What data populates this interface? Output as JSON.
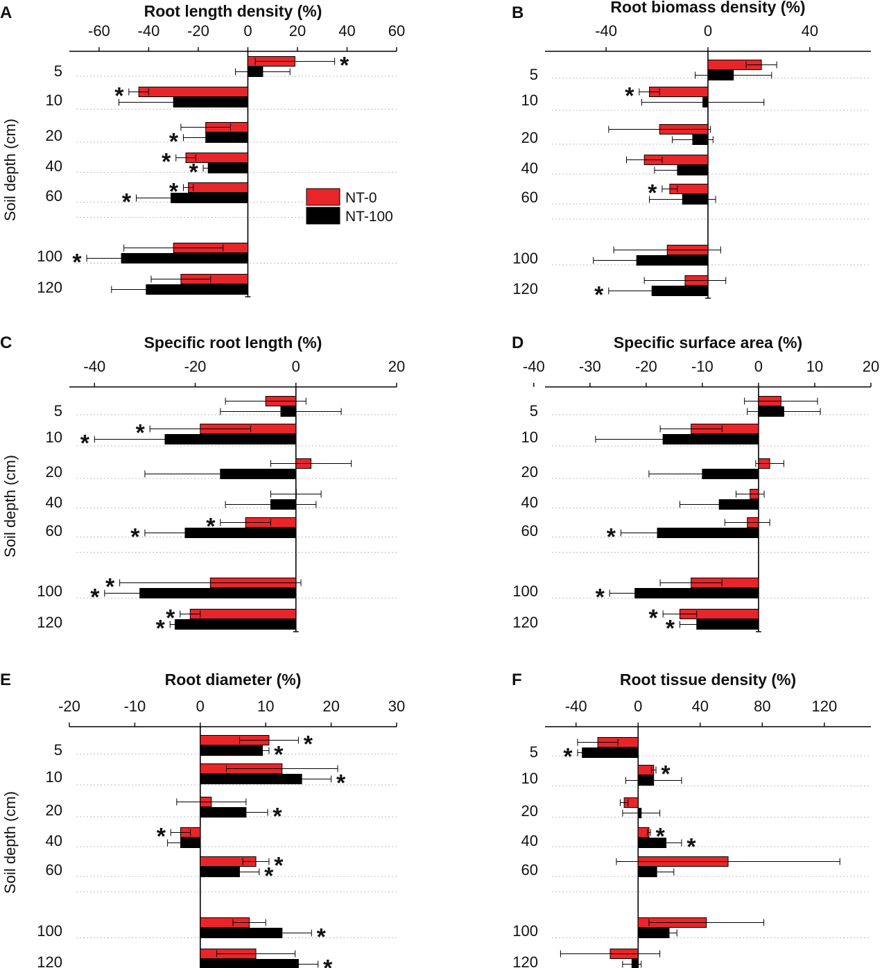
{
  "legend": {
    "items": [
      {
        "label": "NT-0",
        "color": "#e8262a"
      },
      {
        "label": "NT-100",
        "color": "#000000"
      }
    ]
  },
  "colors": {
    "nt0": "#e8262a",
    "nt100": "#000000",
    "axis": "#000000",
    "grid": "#bdbdbd"
  },
  "chart_data": [
    {
      "panel": "A",
      "type": "bar",
      "title": "Root length density (%)",
      "ylabel": "Soil depth (cm)",
      "categories": [
        "5",
        "10",
        "20",
        "40",
        "60",
        "100",
        "120"
      ],
      "xlim": [
        -72,
        60
      ],
      "ticks": [
        -60,
        -40,
        -20,
        0,
        20,
        40,
        60
      ],
      "tick_labels": [
        "-60",
        "-40",
        "-20",
        "0",
        "20",
        "40",
        "60"
      ],
      "series": [
        {
          "name": "NT-0",
          "values": [
            19,
            -44,
            -17,
            -25,
            -24,
            -30,
            -27
          ],
          "errors": [
            16,
            4,
            10,
            4,
            2,
            20,
            12
          ],
          "stars": [
            true,
            true,
            false,
            true,
            true,
            false,
            false
          ]
        },
        {
          "name": "NT-100",
          "values": [
            6,
            -30,
            -17,
            -16,
            -31,
            -51,
            -41
          ],
          "errors": [
            11,
            22,
            9,
            2,
            14,
            14,
            14
          ],
          "stars": [
            false,
            false,
            true,
            true,
            true,
            true,
            false
          ]
        }
      ]
    },
    {
      "panel": "B",
      "type": "bar",
      "title": "Root biomass density (%)",
      "ylabel": "",
      "categories": [
        "5",
        "10",
        "20",
        "40",
        "60",
        "100",
        "120"
      ],
      "xlim": [
        -64,
        64
      ],
      "ticks": [
        -40,
        0,
        40
      ],
      "tick_labels": [
        "-40",
        "0",
        "40"
      ],
      "series": [
        {
          "name": "NT-0",
          "values": [
            21,
            -23,
            -19,
            -25,
            -15,
            -16,
            -9
          ],
          "errors": [
            6,
            4,
            20,
            7,
            3,
            21,
            16
          ],
          "stars": [
            false,
            true,
            false,
            false,
            true,
            false,
            false
          ]
        },
        {
          "name": "NT-100",
          "values": [
            10,
            -2,
            -6,
            -12,
            -10,
            -28,
            -22
          ],
          "errors": [
            15,
            24,
            8,
            9,
            13,
            17,
            17
          ],
          "stars": [
            false,
            false,
            false,
            false,
            false,
            false,
            true
          ]
        }
      ]
    },
    {
      "panel": "C",
      "type": "bar",
      "title": "Specific root length (%)",
      "ylabel": "Soil depth (cm)",
      "categories": [
        "5",
        "10",
        "20",
        "40",
        "60",
        "100",
        "120"
      ],
      "xlim": [
        -45,
        20
      ],
      "ticks": [
        -40,
        -20,
        0,
        20
      ],
      "tick_labels": [
        "-40",
        "-20",
        "0",
        "20"
      ],
      "series": [
        {
          "name": "NT-0",
          "values": [
            -6,
            -19,
            3,
            0,
            -10,
            -17,
            -21
          ],
          "errors": [
            8,
            10,
            8,
            5,
            5,
            18,
            2
          ],
          "stars": [
            false,
            true,
            false,
            false,
            true,
            true,
            true
          ]
        },
        {
          "name": "NT-100",
          "values": [
            -3,
            -26,
            -15,
            -5,
            -22,
            -31,
            -24
          ],
          "errors": [
            12,
            14,
            15,
            9,
            8,
            7,
            1
          ],
          "stars": [
            false,
            true,
            false,
            false,
            true,
            true,
            true
          ]
        }
      ]
    },
    {
      "panel": "D",
      "type": "bar",
      "title": "Specific surface area (%)",
      "ylabel": "",
      "categories": [
        "5",
        "10",
        "20",
        "40",
        "60",
        "100",
        "120"
      ],
      "xlim": [
        -38,
        20
      ],
      "ticks": [
        -40,
        -30,
        -20,
        -10,
        0,
        10,
        20
      ],
      "tick_labels": [
        "-40",
        "-30",
        "-20",
        "-10",
        "0",
        "10",
        "20"
      ],
      "series": [
        {
          "name": "NT-0",
          "values": [
            4,
            -12,
            2,
            -1.5,
            -2,
            -12,
            -14
          ],
          "errors": [
            6.5,
            5.5,
            2.5,
            2.5,
            4,
            5.5,
            3
          ],
          "stars": [
            false,
            false,
            false,
            false,
            false,
            false,
            true
          ]
        },
        {
          "name": "NT-100",
          "values": [
            4.5,
            -17,
            -10,
            -7,
            -18,
            -22,
            -11
          ],
          "errors": [
            6.5,
            12,
            9.5,
            7,
            6.5,
            4.5,
            3
          ],
          "stars": [
            false,
            false,
            false,
            false,
            true,
            true,
            true
          ]
        }
      ]
    },
    {
      "panel": "E",
      "type": "bar",
      "title": "Root diameter (%)",
      "ylabel": "Soil depth (cm)",
      "categories": [
        "5",
        "10",
        "20",
        "40",
        "60",
        "100",
        "120"
      ],
      "xlim": [
        -20,
        30
      ],
      "ticks": [
        -20,
        -10,
        0,
        10,
        20,
        30
      ],
      "tick_labels": [
        "-20",
        "-10",
        "0",
        "10",
        "20",
        "30"
      ],
      "series": [
        {
          "name": "NT-0",
          "values": [
            10.5,
            12.5,
            1.7,
            -3,
            8.5,
            7.5,
            8.5
          ],
          "errors": [
            4.5,
            8.5,
            5.3,
            1.5,
            2,
            2.5,
            6
          ],
          "stars": [
            true,
            false,
            false,
            true,
            true,
            false,
            false
          ]
        },
        {
          "name": "NT-100",
          "values": [
            9.5,
            15.5,
            7,
            -3,
            6,
            12.5,
            15
          ],
          "errors": [
            1,
            4.5,
            3.3,
            2,
            3,
            4.5,
            3
          ],
          "stars": [
            true,
            true,
            true,
            false,
            true,
            true,
            true
          ]
        }
      ]
    },
    {
      "panel": "F",
      "type": "bar",
      "title": "Root tissue density (%)",
      "ylabel": "",
      "categories": [
        "5",
        "10",
        "20",
        "40",
        "60",
        "100",
        "120"
      ],
      "xlim": [
        -60,
        150
      ],
      "ticks": [
        -40,
        0,
        40,
        80,
        120
      ],
      "tick_labels": [
        "-40",
        "0",
        "40",
        "80",
        "120"
      ],
      "series": [
        {
          "name": "NT-0",
          "values": [
            -26,
            10,
            -9,
            7,
            58,
            44,
            -18
          ],
          "errors": [
            13,
            1.5,
            2.5,
            1,
            72,
            37,
            32
          ],
          "stars": [
            false,
            true,
            false,
            true,
            false,
            false,
            false
          ]
        },
        {
          "name": "NT-100",
          "values": [
            -36,
            10,
            2,
            18,
            12,
            20,
            -4
          ],
          "errors": [
            3,
            18,
            12,
            10,
            11,
            5,
            6
          ],
          "stars": [
            true,
            false,
            false,
            true,
            false,
            false,
            false
          ]
        }
      ]
    }
  ]
}
